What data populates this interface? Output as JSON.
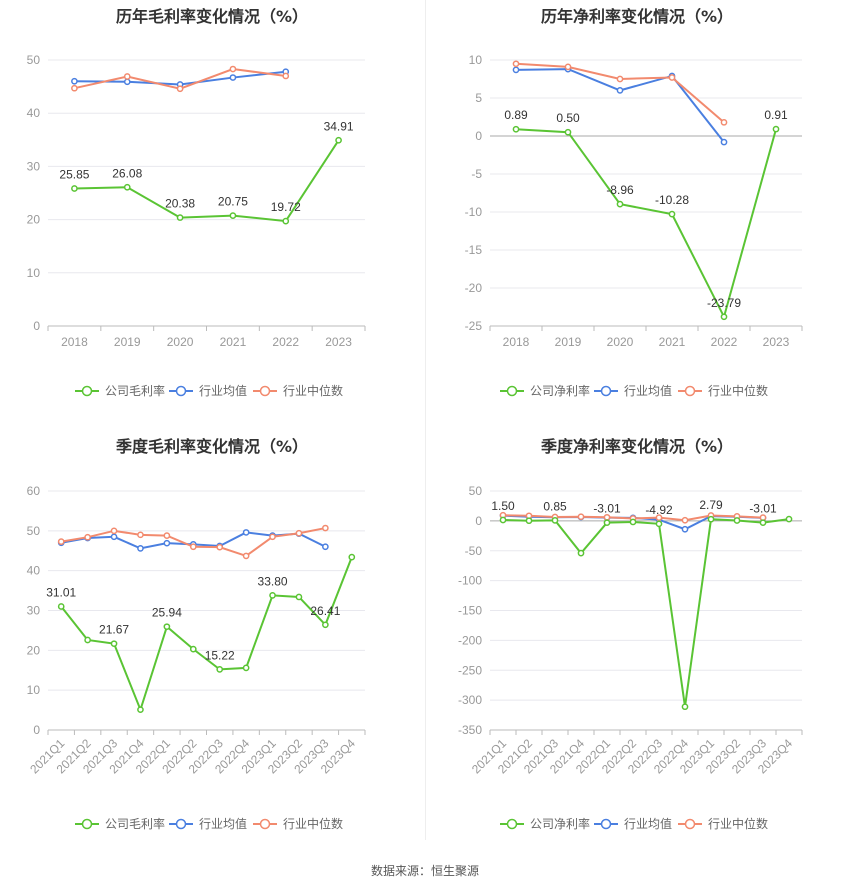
{
  "colors": {
    "company": "#5ac434",
    "industry_avg": "#4a7fe0",
    "industry_median": "#f28a6e",
    "grid": "#e8e8ee",
    "axis": "#999999"
  },
  "source": "数据来源：恒生聚源",
  "chart_data": [
    {
      "type": "line",
      "title": "历年毛利率变化情况（%）",
      "categories": [
        "2018",
        "2019",
        "2020",
        "2021",
        "2022",
        "2023"
      ],
      "ylim": [
        0,
        50
      ],
      "yticks": [
        0,
        10,
        20,
        30,
        40,
        50
      ],
      "grid": true,
      "legend_position": "bottom",
      "series": [
        {
          "name": "公司毛利率",
          "color_key": "company",
          "values": [
            25.85,
            26.08,
            20.38,
            20.75,
            19.72,
            34.91
          ],
          "labels": [
            "25.85",
            "26.08",
            "20.38",
            "20.75",
            "19.72",
            "34.91"
          ]
        },
        {
          "name": "行业均值",
          "color_key": "industry_avg",
          "values": [
            46.0,
            45.9,
            45.4,
            46.7,
            47.8,
            null
          ]
        },
        {
          "name": "行业中位数",
          "color_key": "industry_median",
          "values": [
            44.7,
            46.9,
            44.6,
            48.3,
            47.0,
            null
          ]
        }
      ]
    },
    {
      "type": "line",
      "title": "历年净利率变化情况（%）",
      "categories": [
        "2018",
        "2019",
        "2020",
        "2021",
        "2022",
        "2023"
      ],
      "ylim": [
        -25,
        10
      ],
      "yticks": [
        -25,
        -20,
        -15,
        -10,
        -5,
        0,
        5,
        10
      ],
      "grid": true,
      "legend_position": "bottom",
      "series": [
        {
          "name": "公司净利率",
          "color_key": "company",
          "values": [
            0.89,
            0.5,
            -8.96,
            -10.28,
            -23.79,
            0.91
          ],
          "labels": [
            "0.89",
            "0.50",
            "-8.96",
            "-10.28",
            "-23.79",
            "0.91"
          ]
        },
        {
          "name": "行业均值",
          "color_key": "industry_avg",
          "values": [
            8.7,
            8.8,
            6.0,
            7.9,
            -0.8,
            null
          ]
        },
        {
          "name": "行业中位数",
          "color_key": "industry_median",
          "values": [
            9.5,
            9.1,
            7.5,
            7.7,
            1.8,
            null
          ]
        }
      ]
    },
    {
      "type": "line",
      "title": "季度毛利率变化情况（%）",
      "categories": [
        "2021Q1",
        "2021Q2",
        "2021Q3",
        "2021Q4",
        "2022Q1",
        "2022Q2",
        "2022Q3",
        "2022Q4",
        "2023Q1",
        "2023Q2",
        "2023Q3",
        "2023Q4"
      ],
      "ylim": [
        0,
        60
      ],
      "yticks": [
        0,
        10,
        20,
        30,
        40,
        50,
        60
      ],
      "grid": true,
      "legend_position": "bottom",
      "series": [
        {
          "name": "公司毛利率",
          "color_key": "company",
          "values": [
            31.01,
            22.6,
            21.67,
            5.1,
            25.94,
            20.3,
            15.22,
            15.6,
            33.8,
            33.4,
            26.41,
            43.4
          ],
          "labels": [
            "31.01",
            "",
            "21.67",
            "",
            "25.94",
            "",
            "15.22",
            "",
            "33.80",
            "",
            "26.41",
            ""
          ]
        },
        {
          "name": "行业均值",
          "color_key": "industry_avg",
          "values": [
            47.0,
            48.2,
            48.5,
            45.6,
            46.9,
            46.6,
            46.2,
            49.6,
            48.8,
            49.3,
            46.0,
            null
          ]
        },
        {
          "name": "行业中位数",
          "color_key": "industry_median",
          "values": [
            47.3,
            48.4,
            50.0,
            49.0,
            48.8,
            46.0,
            45.9,
            43.7,
            48.5,
            49.4,
            50.7,
            null
          ]
        }
      ]
    },
    {
      "type": "line",
      "title": "季度净利率变化情况（%）",
      "categories": [
        "2021Q1",
        "2021Q2",
        "2021Q3",
        "2021Q4",
        "2022Q1",
        "2022Q2",
        "2022Q3",
        "2022Q4",
        "2023Q1",
        "2023Q2",
        "2023Q3",
        "2023Q4"
      ],
      "ylim": [
        -350,
        50
      ],
      "yticks": [
        -350,
        -300,
        -250,
        -200,
        -150,
        -100,
        -50,
        0,
        50
      ],
      "grid": true,
      "legend_position": "bottom",
      "series": [
        {
          "name": "公司净利率",
          "color_key": "company",
          "values": [
            1.5,
            0.3,
            0.85,
            -54.0,
            -3.01,
            -1.8,
            -4.92,
            -311.0,
            2.79,
            0.6,
            -3.01,
            3.0
          ],
          "labels": [
            "1.50",
            "",
            "0.85",
            "",
            "-3.01",
            "",
            "-4.92",
            "",
            "2.79",
            "",
            "-3.01",
            ""
          ]
        },
        {
          "name": "行业均值",
          "color_key": "industry_avg",
          "values": [
            8.7,
            7.0,
            6.0,
            6.5,
            5.5,
            5.0,
            2.0,
            -14.0,
            8.0,
            7.0,
            5.0,
            null
          ]
        },
        {
          "name": "行业中位数",
          "color_key": "industry_median",
          "values": [
            9.5,
            8.5,
            6.5,
            7.0,
            6.0,
            4.0,
            5.5,
            1.0,
            9.0,
            7.5,
            5.5,
            null
          ]
        }
      ]
    }
  ]
}
